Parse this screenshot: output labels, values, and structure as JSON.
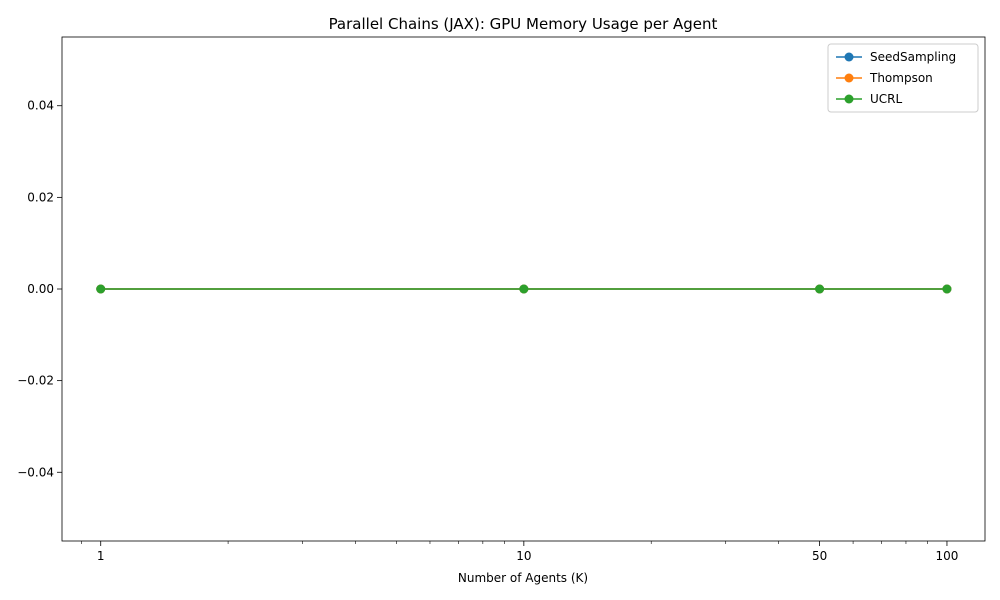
{
  "chart_data": {
    "type": "line",
    "title": "Parallel Chains (JAX): GPU Memory Usage per Agent",
    "xlabel": "Number of Agents (K)",
    "ylabel": "",
    "xscale": "log",
    "x": [
      1,
      10,
      50,
      100
    ],
    "xticks": [
      1,
      10,
      50,
      100
    ],
    "xtick_labels": [
      "1",
      "10",
      "50",
      "100"
    ],
    "ylim": [
      -0.055,
      0.055
    ],
    "yticks": [
      -0.04,
      -0.02,
      0.0,
      0.02,
      0.04
    ],
    "ytick_labels": [
      "−0.04",
      "−0.02",
      "0.00",
      "0.02",
      "0.04"
    ],
    "grid": false,
    "legend_position": "top-right",
    "series": [
      {
        "name": "SeedSampling",
        "values": [
          0,
          0,
          0,
          0
        ],
        "color": "#1f77b4"
      },
      {
        "name": "Thompson",
        "values": [
          0,
          0,
          0,
          0
        ],
        "color": "#ff7f0e"
      },
      {
        "name": "UCRL",
        "values": [
          0,
          0,
          0,
          0
        ],
        "color": "#2ca02c"
      }
    ]
  }
}
